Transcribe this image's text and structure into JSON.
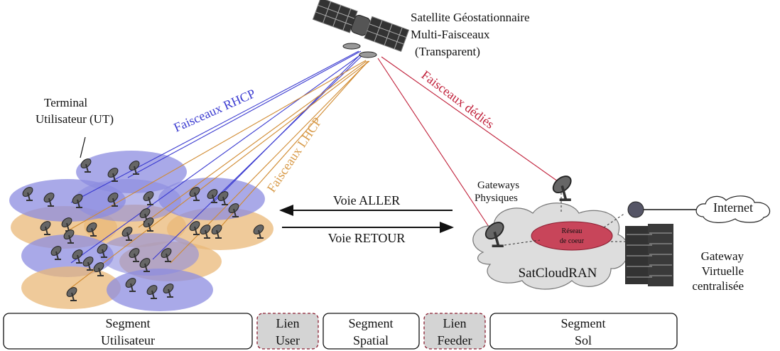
{
  "satellite": {
    "label": [
      "Satellite Géostationnaire",
      "Multi-Faisceaux",
      "(Transparent)"
    ]
  },
  "terminal": {
    "label": [
      "Terminal",
      "Utilisateur (UT)"
    ]
  },
  "beams": {
    "rhcp": "Faisceaux RHCP",
    "lhcp": "Faisceaux LHCP",
    "dedicated": "Faisceaux dédiés"
  },
  "links": {
    "forward": "Voie ALLER",
    "return": "Voie RETOUR"
  },
  "gateways": {
    "label": [
      "Gateways",
      "Physiques"
    ]
  },
  "internet": "Internet",
  "core": {
    "label": [
      "Réseau",
      "de coeur"
    ]
  },
  "cloud": "SatCloudRAN",
  "virtual_gateway": {
    "label": [
      "Gateway",
      "Virtuelle",
      "centralisée"
    ]
  },
  "segments": [
    {
      "lines": [
        "Segment",
        "Utilisateur"
      ]
    },
    {
      "lines": [
        "Lien",
        "User"
      ]
    },
    {
      "lines": [
        "Segment",
        "Spatial"
      ]
    },
    {
      "lines": [
        "Lien",
        "Feeder"
      ]
    },
    {
      "lines": [
        "Segment",
        "Sol"
      ]
    }
  ]
}
